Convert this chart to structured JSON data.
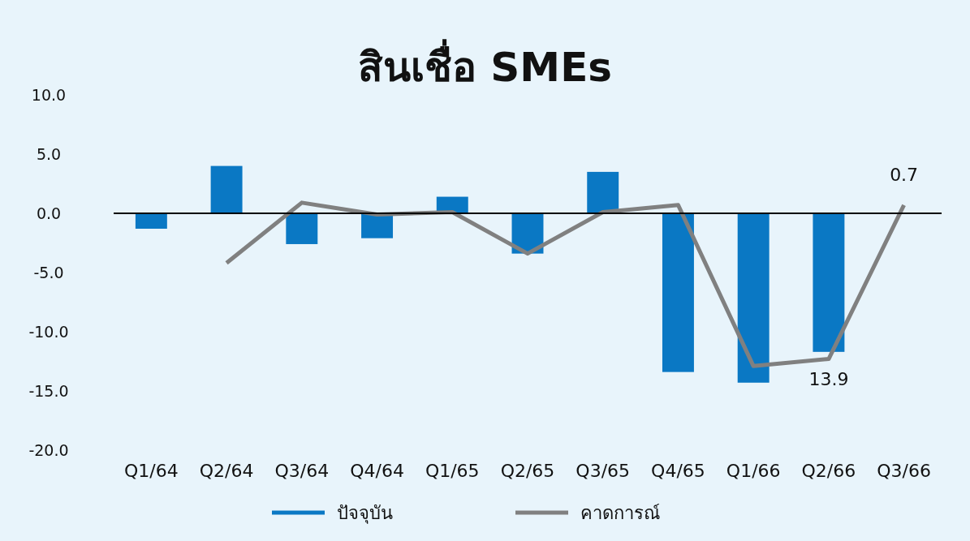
{
  "chart_data": {
    "type": "bar",
    "title": "สินเชื่อ SMEs",
    "categories": [
      "Q1/64",
      "Q2/64",
      "Q3/64",
      "Q4/64",
      "Q1/65",
      "Q2/65",
      "Q3/65",
      "Q4/65",
      "Q1/66",
      "Q2/66",
      "Q3/66"
    ],
    "series": [
      {
        "name": "ปัจจุบัน",
        "color": "#0a78c4",
        "values": [
          -1.3,
          4.0,
          -2.6,
          -2.1,
          1.4,
          -3.4,
          3.5,
          -13.4,
          -14.3,
          -11.7,
          null
        ]
      },
      {
        "name": "คาดการณ์",
        "type": "line",
        "color": "#808080",
        "values": [
          null,
          -4.2,
          0.9,
          -0.1,
          0.1,
          -3.4,
          0.1,
          0.7,
          -12.9,
          -12.3,
          0.7
        ],
        "value_labels": [
          null,
          null,
          null,
          null,
          null,
          null,
          null,
          null,
          null,
          null,
          "0.7"
        ]
      }
    ],
    "ylim": [
      -20,
      10
    ],
    "yticks": [
      {
        "value": 10,
        "label": "10.0"
      },
      {
        "value": 5,
        "label": "5.0"
      },
      {
        "value": 0,
        "label": "0.0"
      },
      {
        "value": -5,
        "label": "-5.0"
      },
      {
        "value": -10,
        "label": "-10.0"
      },
      {
        "value": -15,
        "label": "-15.0"
      },
      {
        "value": -20,
        "label": "-20.0"
      }
    ],
    "ref_lines": [
      {
        "axis": "y",
        "value": 0,
        "color": "#000000"
      }
    ],
    "annotations": [
      {
        "text": "13.9",
        "x": "Q2/66",
        "y": -12.3
      }
    ],
    "legend": "bottom",
    "grid": false,
    "marker": "none",
    "line_style": "solid"
  }
}
